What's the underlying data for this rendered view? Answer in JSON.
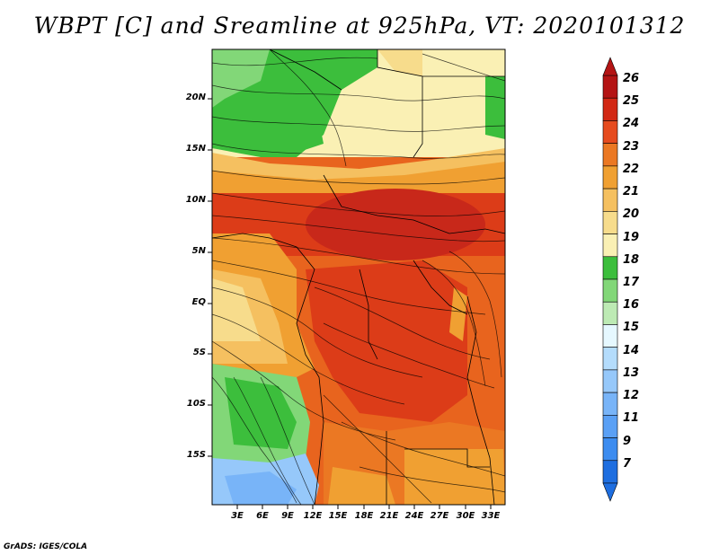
{
  "title": "WBPT [C] and Sreamline at 925hPa, VT: 2020101312",
  "footer": "GrADS: IGES/COLA",
  "map": {
    "lat_labels": [
      "20N",
      "15N",
      "10N",
      "5N",
      "EQ",
      "5S",
      "10S",
      "15S"
    ],
    "lon_labels": [
      "3E",
      "6E",
      "9E",
      "12E",
      "15E",
      "18E",
      "21E",
      "24E",
      "27E",
      "30E",
      "33E"
    ]
  },
  "colorbar": {
    "labels": [
      "7",
      "9",
      "11",
      "12",
      "13",
      "14",
      "15",
      "16",
      "17",
      "18",
      "19",
      "20",
      "21",
      "22",
      "23",
      "24",
      "25",
      "26"
    ],
    "colors": [
      "#1e6ee0",
      "#3c8cf0",
      "#5aa0f5",
      "#78b4f8",
      "#96c8fa",
      "#b4dcfc",
      "#e6f8ff",
      "#bdeab4",
      "#82d778",
      "#3cbe3c",
      "#faf0b4",
      "#f7dc8c",
      "#f5c060",
      "#f0a032",
      "#eb7823",
      "#e64b1e",
      "#d22814",
      "#b41414"
    ]
  },
  "legend_ranges": [
    "26",
    "25",
    "24",
    "23",
    "22",
    "21",
    "20",
    "19",
    "18",
    "17",
    "16",
    "15",
    "14",
    "13",
    "12",
    "11",
    "9",
    "7"
  ]
}
